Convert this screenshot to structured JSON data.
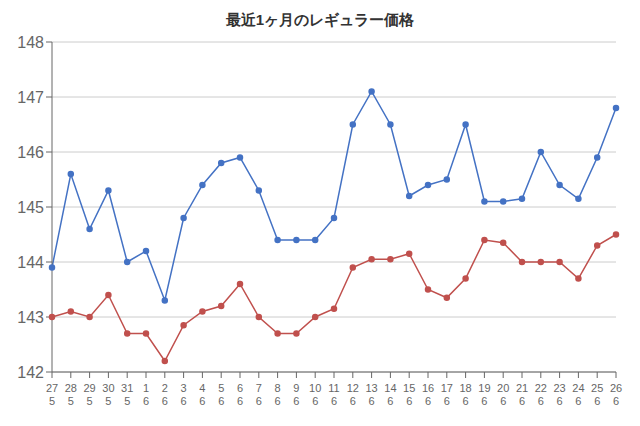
{
  "chart_data": {
    "type": "line",
    "title": "最近1ヶ月のレギュラー価格",
    "categories": [
      [
        "27",
        "5"
      ],
      [
        "28",
        "5"
      ],
      [
        "29",
        "5"
      ],
      [
        "30",
        "5"
      ],
      [
        "31",
        "5"
      ],
      [
        "1",
        "6"
      ],
      [
        "2",
        "6"
      ],
      [
        "3",
        "6"
      ],
      [
        "4",
        "6"
      ],
      [
        "5",
        "6"
      ],
      [
        "6",
        "6"
      ],
      [
        "7",
        "6"
      ],
      [
        "8",
        "6"
      ],
      [
        "9",
        "6"
      ],
      [
        "10",
        "6"
      ],
      [
        "11",
        "6"
      ],
      [
        "12",
        "6"
      ],
      [
        "13",
        "6"
      ],
      [
        "14",
        "6"
      ],
      [
        "15",
        "6"
      ],
      [
        "16",
        "6"
      ],
      [
        "17",
        "6"
      ],
      [
        "18",
        "6"
      ],
      [
        "19",
        "6"
      ],
      [
        "20",
        "6"
      ],
      [
        "21",
        "6"
      ],
      [
        "22",
        "6"
      ],
      [
        "23",
        "6"
      ],
      [
        "24",
        "6"
      ],
      [
        "25",
        "6"
      ],
      [
        "26",
        "6"
      ]
    ],
    "series": [
      {
        "color": "#4472C4",
        "marker": "circle",
        "values": [
          143.9,
          145.6,
          144.6,
          145.3,
          144.0,
          144.2,
          143.3,
          144.8,
          145.4,
          145.8,
          145.9,
          145.3,
          144.4,
          144.4,
          144.4,
          144.8,
          146.5,
          147.1,
          146.5,
          145.2,
          145.4,
          145.5,
          146.5,
          145.1,
          145.1,
          145.15,
          146.0,
          145.4,
          145.15,
          145.9,
          146.8
        ]
      },
      {
        "color": "#C0504D",
        "marker": "circle",
        "values": [
          143.0,
          143.1,
          143.0,
          143.4,
          142.7,
          142.7,
          142.2,
          142.85,
          143.1,
          143.2,
          143.6,
          143.0,
          142.7,
          142.7,
          143.0,
          143.15,
          143.9,
          144.05,
          144.05,
          144.15,
          143.5,
          143.35,
          143.7,
          144.4,
          144.35,
          144.0,
          144.0,
          144.0,
          143.7,
          144.3,
          144.5
        ]
      }
    ],
    "ylim": [
      142,
      148
    ],
    "yticks": [
      142,
      143,
      144,
      145,
      146,
      147,
      148
    ],
    "grid": true
  }
}
